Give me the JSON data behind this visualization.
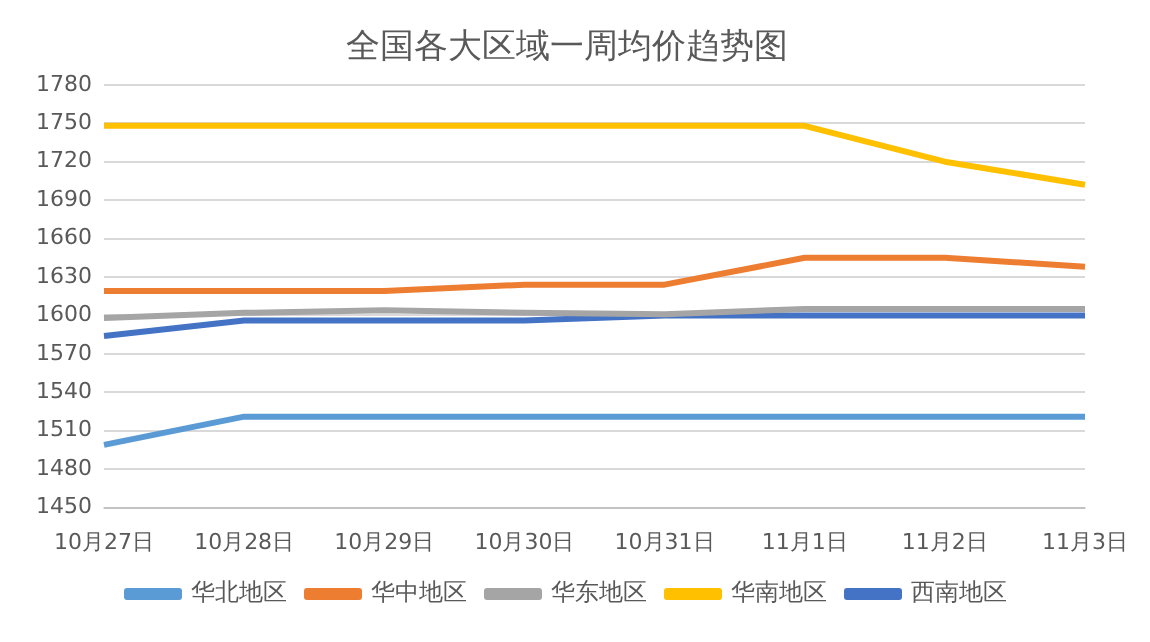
{
  "chart_data": {
    "type": "line",
    "title": "全国各大区域一周均价趋势图",
    "categories": [
      "10月27日",
      "10月28日",
      "10月29日",
      "10月30日",
      "10月31日",
      "11月1日",
      "11月2日",
      "11月3日"
    ],
    "series": [
      {
        "name": "华北地区",
        "color": "#5b9bd5",
        "values": [
          1499,
          1521,
          1521,
          1521,
          1521,
          1521,
          1521,
          1521
        ]
      },
      {
        "name": "华中地区",
        "color": "#ed7d31",
        "values": [
          1619,
          1619,
          1619,
          1624,
          1624,
          1645,
          1645,
          1638
        ]
      },
      {
        "name": "华东地区",
        "color": "#a5a5a5",
        "values": [
          1598,
          1602,
          1604,
          1602,
          1601,
          1605,
          1605,
          1605
        ]
      },
      {
        "name": "华南地区",
        "color": "#ffc000",
        "values": [
          1748,
          1748,
          1748,
          1748,
          1748,
          1748,
          1720,
          1702
        ]
      },
      {
        "name": "西南地区",
        "color": "#4472c4",
        "values": [
          1584,
          1596,
          1596,
          1596,
          1600,
          1600,
          1600,
          1600
        ]
      }
    ],
    "ylim": [
      1450,
      1780
    ],
    "yticks": [
      1450,
      1480,
      1510,
      1540,
      1570,
      1600,
      1630,
      1660,
      1690,
      1720,
      1750,
      1780
    ],
    "grid": "y",
    "legend": "bottom",
    "marker": "none",
    "line_style": "solid"
  }
}
